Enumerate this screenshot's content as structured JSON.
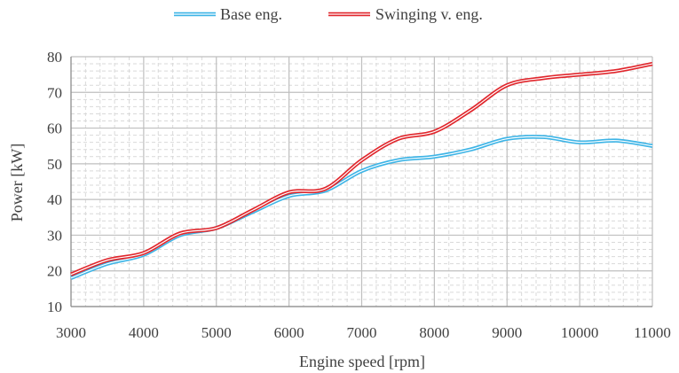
{
  "chart_data": {
    "type": "line",
    "xlabel": "Engine  speed [rpm]",
    "ylabel": "Power [kW]",
    "xlim": [
      3000,
      11000
    ],
    "ylim": [
      10,
      80
    ],
    "x_ticks": [
      3000,
      4000,
      5000,
      6000,
      7000,
      8000,
      9000,
      10000,
      11000
    ],
    "y_ticks": [
      10,
      20,
      30,
      40,
      50,
      60,
      70,
      80
    ],
    "x_tick_labels": [
      "3000",
      "4000",
      "5000",
      "6000",
      "7000",
      "8000",
      "9000",
      "10000",
      "11000"
    ],
    "y_tick_labels": [
      "10",
      "20",
      "30",
      "40",
      "50",
      "60",
      "70",
      "80"
    ],
    "grid": "major and minor",
    "legend_position": "top",
    "series": [
      {
        "name": "Base eng.",
        "color": "#3DB4E6",
        "x": [
          3000,
          3500,
          4000,
          4500,
          5000,
          5500,
          6000,
          6500,
          7000,
          7500,
          8000,
          8500,
          9000,
          9500,
          10000,
          10500,
          11000
        ],
        "y": [
          18,
          22,
          24.5,
          30,
          32,
          36.5,
          41,
          42.5,
          48,
          51,
          52,
          54,
          57,
          57.5,
          56,
          56.5,
          55
        ]
      },
      {
        "name": "Swinging v. eng.",
        "color": "#E0262C",
        "x": [
          3000,
          3500,
          4000,
          4500,
          5000,
          5500,
          6000,
          6500,
          7000,
          7500,
          8000,
          8500,
          9000,
          9500,
          10000,
          10500,
          11000
        ],
        "y": [
          19,
          23,
          25,
          30.5,
          32,
          37,
          42,
          43,
          51,
          57,
          59,
          65,
          72,
          74,
          75,
          76,
          78
        ]
      }
    ]
  }
}
